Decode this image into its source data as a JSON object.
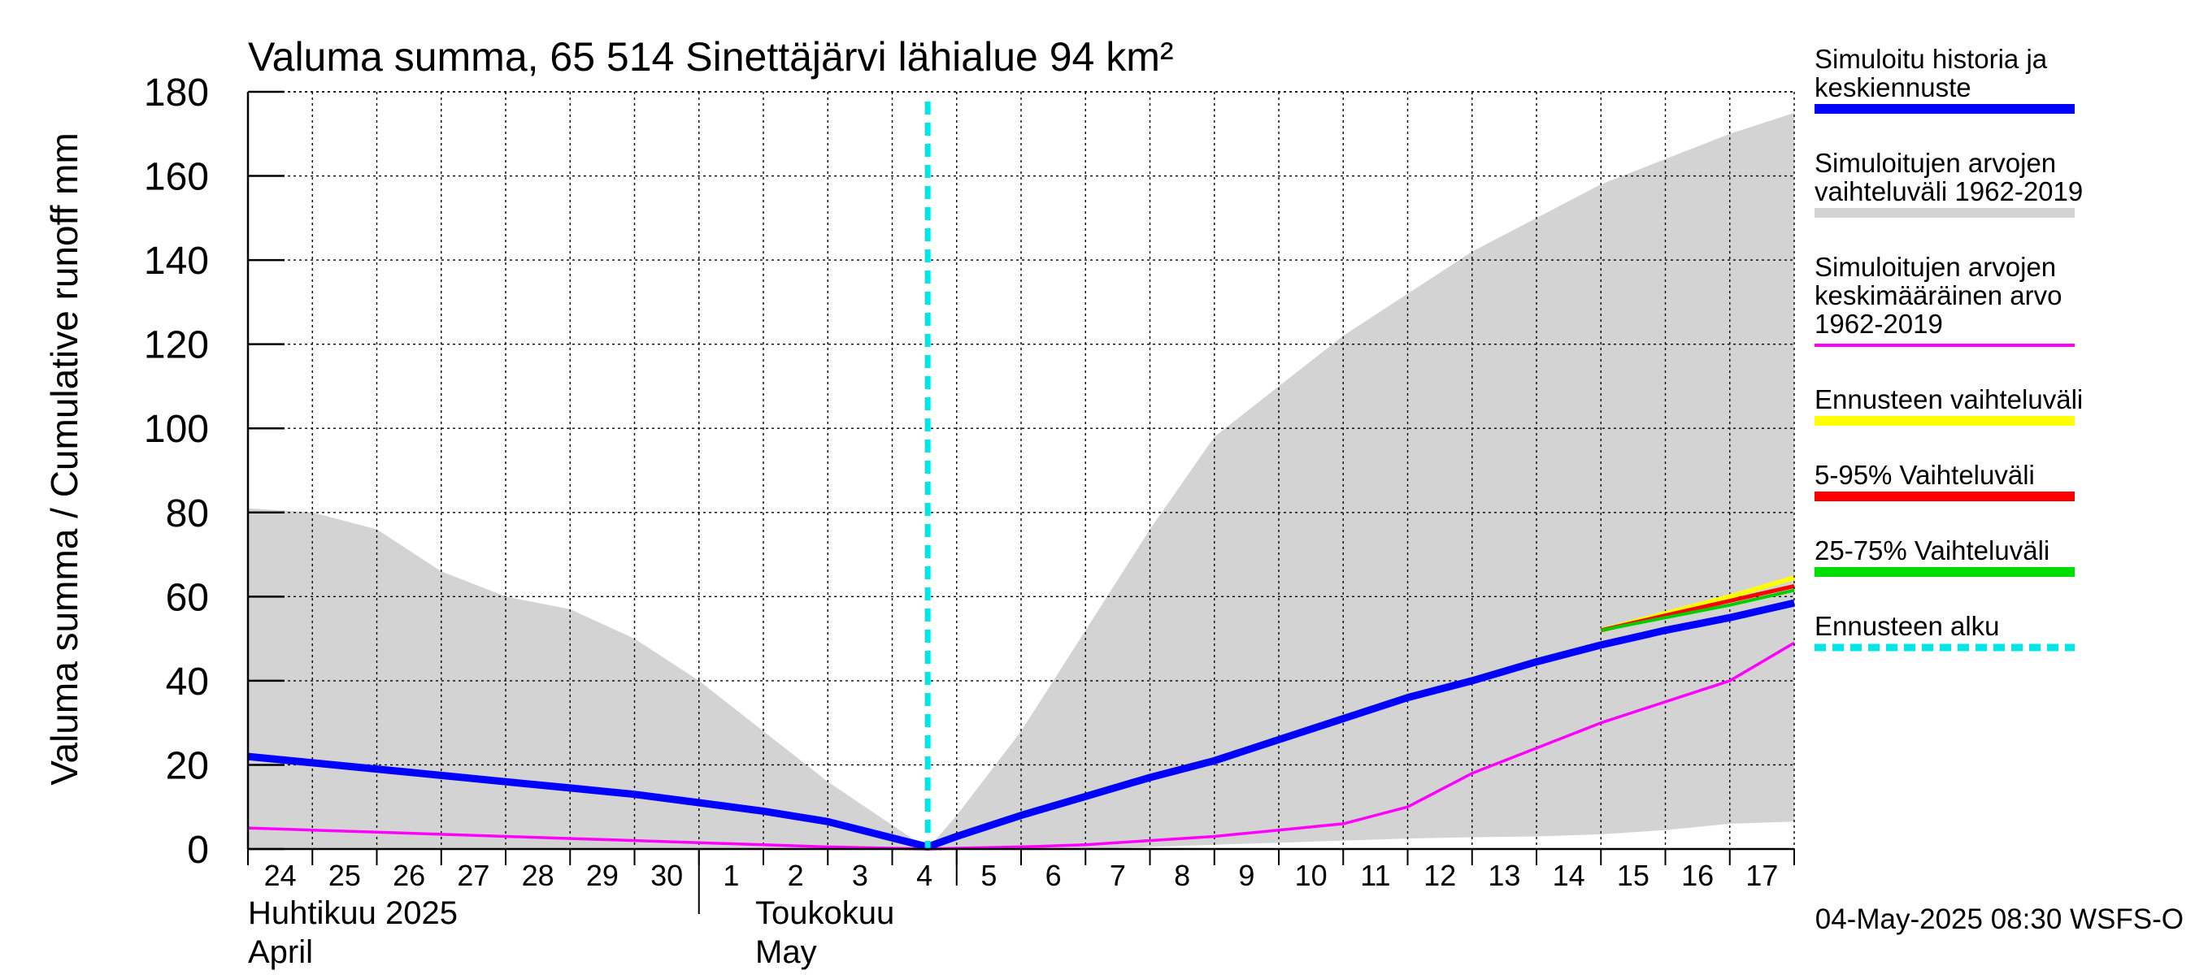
{
  "chart_data": {
    "type": "area",
    "title": "Valuma summa, 65 514 Sinettäjärvi lähialue 94 km²",
    "ylabel": "Valuma summa / Cumulative runoff    mm",
    "ylim": [
      0,
      180
    ],
    "yticks": [
      0,
      20,
      40,
      60,
      80,
      100,
      120,
      140,
      160,
      180
    ],
    "grid": true,
    "legend_position": "right",
    "x_start_label": "24",
    "day_ticks": [
      "24",
      "25",
      "26",
      "27",
      "28",
      "29",
      "30",
      "1",
      "2",
      "3",
      "4",
      "5",
      "6",
      "7",
      "8",
      "9",
      "10",
      "11",
      "12",
      "13",
      "14",
      "15",
      "16",
      "17"
    ],
    "month_labels": [
      {
        "line1": "Huhtikuu  2025",
        "line2": "April"
      },
      {
        "line1": "Toukokuu",
        "line2": "May"
      }
    ],
    "forecast_start_day": 10.55,
    "day_offsets_note": "x values below are day indices: 0 = Apr 24, 7 = May 1, 10 = May 4, 23 = May 17",
    "series": [
      {
        "name": "Simuloitujen arvojen vaihteluväli 1962-2019",
        "kind": "band",
        "color": "#d3d3d3",
        "x": [
          0,
          1,
          2,
          3,
          4,
          5,
          6,
          7,
          8,
          9,
          10.55,
          11,
          12,
          13,
          14,
          15,
          16,
          17,
          18,
          19,
          20,
          21,
          22,
          23,
          24
        ],
        "lower": [
          0,
          0,
          0,
          0,
          0,
          0,
          0,
          0,
          0,
          0,
          0,
          0,
          0,
          0,
          0.5,
          1,
          1.5,
          2,
          2.5,
          2.8,
          3,
          3.5,
          4.5,
          6,
          6.5
        ],
        "upper": [
          81,
          80,
          76,
          66,
          60,
          57,
          50,
          40,
          28,
          16,
          0,
          8,
          28,
          52,
          76,
          98,
          110,
          122,
          132,
          142,
          150,
          158,
          164,
          170,
          175
        ]
      },
      {
        "name": "Simuloitu historia ja keskiennuste",
        "kind": "line",
        "color": "#0000ff",
        "x": [
          0,
          1,
          2,
          3,
          4,
          5,
          6,
          7,
          8,
          9,
          10.55,
          11,
          12,
          13,
          14,
          15,
          16,
          17,
          18,
          19,
          20,
          21,
          22,
          23,
          24
        ],
        "values": [
          22,
          20.5,
          19,
          17.5,
          16,
          14.5,
          13,
          11,
          9,
          6.5,
          0.5,
          3,
          8,
          12.5,
          17,
          21,
          26,
          31,
          36,
          40,
          44.5,
          48.5,
          52,
          55,
          58.5
        ]
      },
      {
        "name": "Simuloitujen arvojen keskimääräinen arvo 1962-2019",
        "kind": "line",
        "color": "#ff00ff",
        "x": [
          0,
          1,
          2,
          3,
          4,
          5,
          6,
          7,
          8,
          9,
          10.55,
          11,
          12,
          13,
          14,
          15,
          16,
          17,
          18,
          19,
          20,
          21,
          22,
          23,
          24
        ],
        "values": [
          5,
          4.5,
          4,
          3.5,
          3,
          2.5,
          2,
          1.5,
          1,
          0.5,
          0,
          0.2,
          0.5,
          1,
          2,
          3,
          4.5,
          6,
          10,
          18,
          24,
          30,
          35,
          40,
          49
        ]
      },
      {
        "name": "Ennusteen vaihteluväli",
        "kind": "line",
        "color": "#ffff00",
        "x": [
          21,
          22,
          23,
          24
        ],
        "values": [
          52,
          56,
          60,
          64.5
        ]
      },
      {
        "name": "5-95% Vaihteluväli",
        "kind": "line",
        "color": "#ff0000",
        "x": [
          21,
          22,
          23,
          24
        ],
        "values": [
          52,
          55.5,
          59,
          62.5
        ]
      },
      {
        "name": "25-75% Vaihteluväli",
        "kind": "line",
        "color": "#00cc00",
        "x": [
          21,
          22,
          23,
          24
        ],
        "values": [
          52,
          55,
          58,
          61.5
        ]
      }
    ],
    "legend": [
      {
        "lines": [
          "Simuloitu historia ja",
          "keskiennuste"
        ],
        "color": "#0000ff",
        "style": "solid"
      },
      {
        "lines": [
          "Simuloitujen arvojen",
          "vaihteluväli 1962-2019"
        ],
        "color": "#d3d3d3",
        "style": "solid"
      },
      {
        "lines": [
          "Simuloitujen arvojen",
          "keskimääräinen arvo",
          "   1962-2019"
        ],
        "color": "#ff00ff",
        "style": "thin"
      },
      {
        "lines": [
          "Ennusteen vaihteluväli"
        ],
        "color": "#ffff00",
        "style": "solid"
      },
      {
        "lines": [
          "5-95% Vaihteluväli"
        ],
        "color": "#ff0000",
        "style": "solid"
      },
      {
        "lines": [
          "25-75% Vaihteluväli"
        ],
        "color": "#00dd00",
        "style": "solid"
      },
      {
        "lines": [
          "Ennusteen alku"
        ],
        "color": "#00e5e5",
        "style": "dashed"
      }
    ],
    "footer": "04-May-2025 08:30 WSFS-O"
  }
}
